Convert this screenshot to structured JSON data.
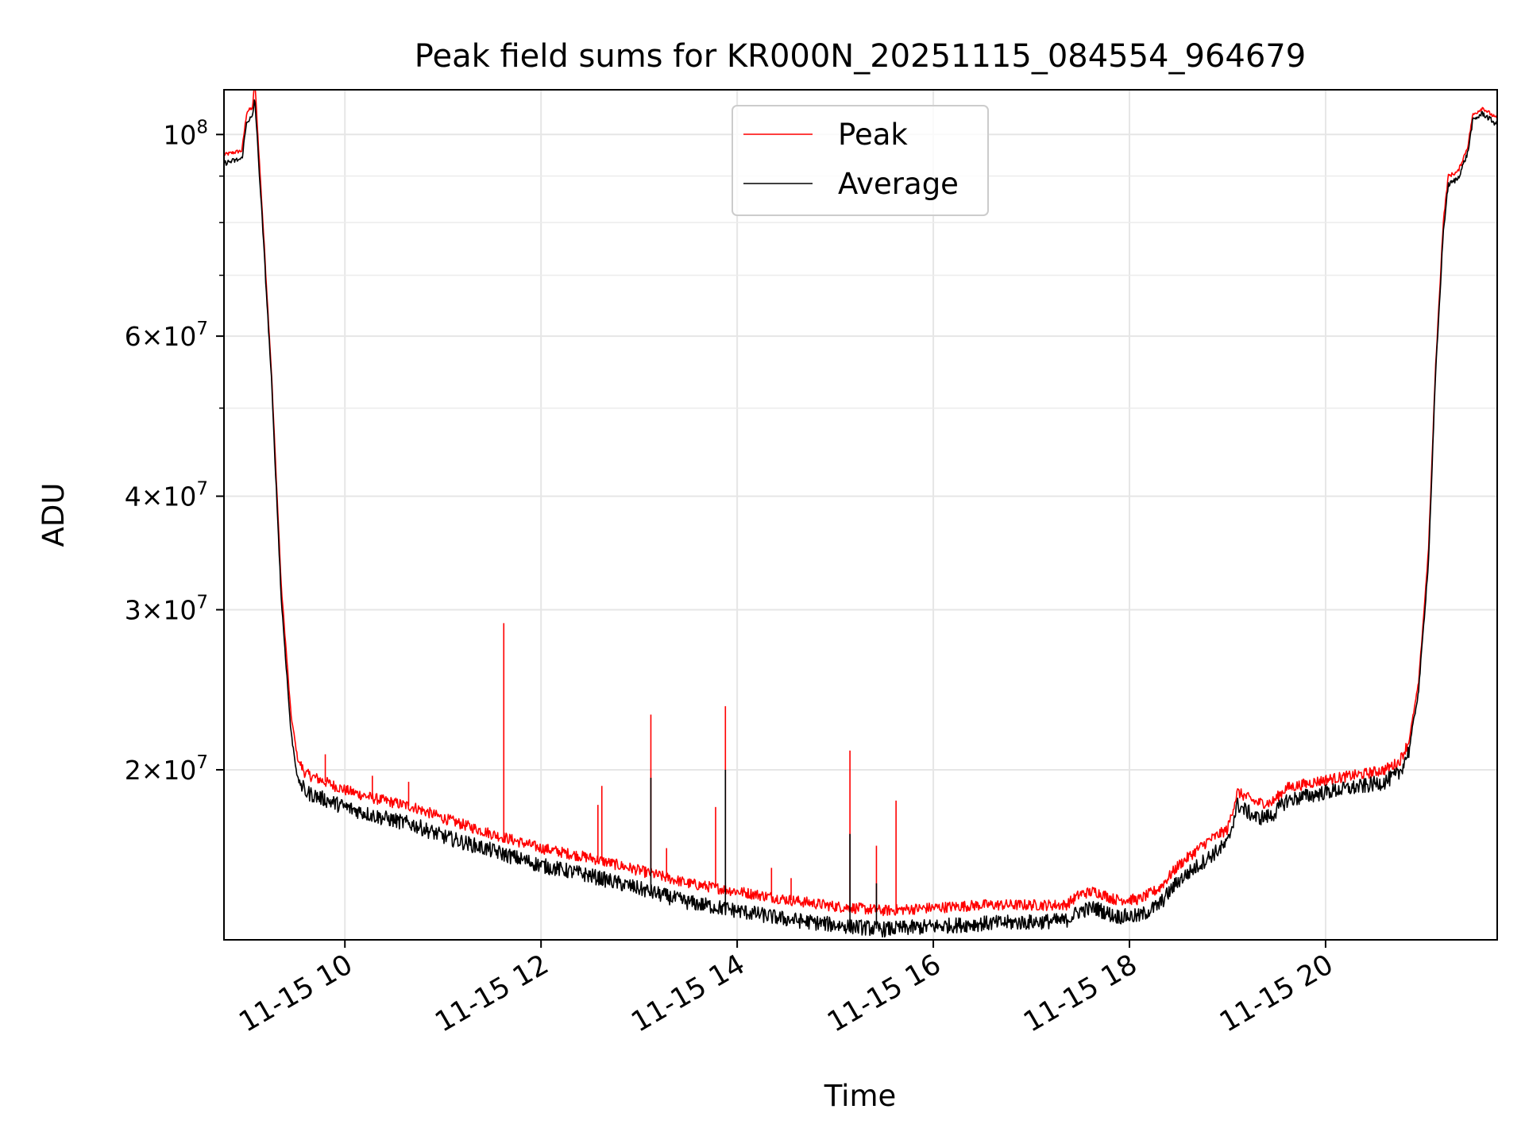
{
  "chart_data": {
    "type": "line",
    "title": "Peak field sums for KR000N_20251115_084554_964679",
    "xlabel": "Time",
    "ylabel": "ADU",
    "yscale": "log",
    "xlim_hours": [
      8.767,
      21.75
    ],
    "ylim": [
      13000000,
      112000000
    ],
    "grid": true,
    "legend_position": "upper center",
    "x_ticks": [
      {
        "hour": 10,
        "label": "11-15 10"
      },
      {
        "hour": 12,
        "label": "11-15 12"
      },
      {
        "hour": 14,
        "label": "11-15 14"
      },
      {
        "hour": 16,
        "label": "11-15 16"
      },
      {
        "hour": 18,
        "label": "11-15 18"
      },
      {
        "hour": 20,
        "label": "11-15 20"
      }
    ],
    "y_ticks": [
      {
        "value": 20000000,
        "mant": "2",
        "exp": "7"
      },
      {
        "value": 30000000,
        "mant": "3",
        "exp": "7"
      },
      {
        "value": 40000000,
        "mant": "4",
        "exp": "7"
      },
      {
        "value": 60000000,
        "mant": "6",
        "exp": "7"
      },
      {
        "value": 100000000,
        "mant": "",
        "exp": "8"
      }
    ],
    "y_minor_ticks": [
      50000000,
      70000000,
      80000000,
      90000000
    ],
    "series": [
      {
        "name": "Peak",
        "color": "#ff0000",
        "points": [
          [
            8.767,
            95000000
          ],
          [
            8.95,
            96000000
          ],
          [
            9.0,
            106000000
          ],
          [
            9.06,
            107000000
          ],
          [
            9.08,
            115000000
          ],
          [
            9.15,
            85000000
          ],
          [
            9.25,
            55000000
          ],
          [
            9.35,
            32000000
          ],
          [
            9.45,
            23000000
          ],
          [
            9.52,
            20500000
          ],
          [
            9.6,
            19800000
          ],
          [
            10.0,
            19000000
          ],
          [
            10.3,
            18600000
          ],
          [
            10.7,
            18200000
          ],
          [
            11.0,
            17700000
          ],
          [
            11.5,
            17000000
          ],
          [
            12.0,
            16400000
          ],
          [
            12.5,
            16000000
          ],
          [
            13.0,
            15500000
          ],
          [
            13.5,
            15000000
          ],
          [
            14.0,
            14700000
          ],
          [
            14.5,
            14400000
          ],
          [
            15.0,
            14150000
          ],
          [
            15.5,
            14000000
          ],
          [
            16.0,
            14100000
          ],
          [
            16.5,
            14200000
          ],
          [
            17.0,
            14200000
          ],
          [
            17.35,
            14200000
          ],
          [
            17.5,
            14600000
          ],
          [
            17.65,
            14700000
          ],
          [
            17.85,
            14400000
          ],
          [
            18.1,
            14400000
          ],
          [
            18.3,
            14800000
          ],
          [
            18.5,
            15700000
          ],
          [
            18.8,
            16700000
          ],
          [
            19.0,
            17200000
          ],
          [
            19.1,
            18900000
          ],
          [
            19.3,
            18400000
          ],
          [
            19.45,
            18400000
          ],
          [
            19.6,
            19100000
          ],
          [
            20.0,
            19500000
          ],
          [
            20.4,
            19800000
          ],
          [
            20.6,
            20000000
          ],
          [
            20.75,
            20400000
          ],
          [
            20.85,
            21500000
          ],
          [
            20.95,
            25000000
          ],
          [
            21.05,
            35000000
          ],
          [
            21.12,
            55000000
          ],
          [
            21.2,
            80000000
          ],
          [
            21.25,
            90000000
          ],
          [
            21.35,
            91000000
          ],
          [
            21.45,
            97000000
          ],
          [
            21.5,
            105000000
          ],
          [
            21.6,
            107000000
          ],
          [
            21.75,
            104000000
          ]
        ],
        "spikes": [
          [
            9.8,
            20800000
          ],
          [
            10.28,
            19700000
          ],
          [
            10.65,
            19400000
          ],
          [
            11.62,
            29000000
          ],
          [
            12.58,
            18300000
          ],
          [
            12.62,
            19200000
          ],
          [
            13.12,
            23000000
          ],
          [
            13.28,
            16400000
          ],
          [
            13.78,
            18200000
          ],
          [
            13.88,
            23500000
          ],
          [
            14.35,
            15600000
          ],
          [
            14.55,
            15200000
          ],
          [
            15.15,
            21000000
          ],
          [
            15.42,
            16500000
          ],
          [
            15.62,
            18500000
          ]
        ]
      },
      {
        "name": "Average",
        "color": "#000000",
        "points": [
          [
            8.767,
            93000000
          ],
          [
            8.95,
            94000000
          ],
          [
            9.0,
            103500000
          ],
          [
            9.06,
            104500000
          ],
          [
            9.08,
            110000000
          ],
          [
            9.15,
            83000000
          ],
          [
            9.25,
            54000000
          ],
          [
            9.35,
            31000000
          ],
          [
            9.45,
            22000000
          ],
          [
            9.52,
            19500000
          ],
          [
            9.6,
            18900000
          ],
          [
            10.0,
            18200000
          ],
          [
            10.3,
            17800000
          ],
          [
            10.7,
            17400000
          ],
          [
            11.0,
            16900000
          ],
          [
            11.5,
            16300000
          ],
          [
            12.0,
            15700000
          ],
          [
            12.5,
            15300000
          ],
          [
            13.0,
            14800000
          ],
          [
            13.5,
            14300000
          ],
          [
            14.0,
            14000000
          ],
          [
            14.5,
            13700000
          ],
          [
            15.0,
            13500000
          ],
          [
            15.5,
            13350000
          ],
          [
            16.0,
            13450000
          ],
          [
            16.5,
            13550000
          ],
          [
            17.0,
            13600000
          ],
          [
            17.35,
            13650000
          ],
          [
            17.5,
            14000000
          ],
          [
            17.65,
            14100000
          ],
          [
            17.85,
            13800000
          ],
          [
            18.1,
            13800000
          ],
          [
            18.3,
            14200000
          ],
          [
            18.5,
            15100000
          ],
          [
            18.8,
            16000000
          ],
          [
            19.0,
            16600000
          ],
          [
            19.1,
            18300000
          ],
          [
            19.3,
            17700000
          ],
          [
            19.45,
            17800000
          ],
          [
            19.6,
            18500000
          ],
          [
            20.0,
            18900000
          ],
          [
            20.4,
            19200000
          ],
          [
            20.6,
            19400000
          ],
          [
            20.75,
            19800000
          ],
          [
            20.85,
            21000000
          ],
          [
            20.95,
            24500000
          ],
          [
            21.05,
            34000000
          ],
          [
            21.12,
            54000000
          ],
          [
            21.2,
            78000000
          ],
          [
            21.25,
            88000000
          ],
          [
            21.35,
            89500000
          ],
          [
            21.45,
            95500000
          ],
          [
            21.5,
            103500000
          ],
          [
            21.6,
            105500000
          ],
          [
            21.75,
            102500000
          ]
        ],
        "spikes": [
          [
            13.12,
            19600000
          ],
          [
            13.88,
            20000000
          ],
          [
            15.15,
            17000000
          ],
          [
            15.42,
            15000000
          ]
        ]
      }
    ]
  }
}
